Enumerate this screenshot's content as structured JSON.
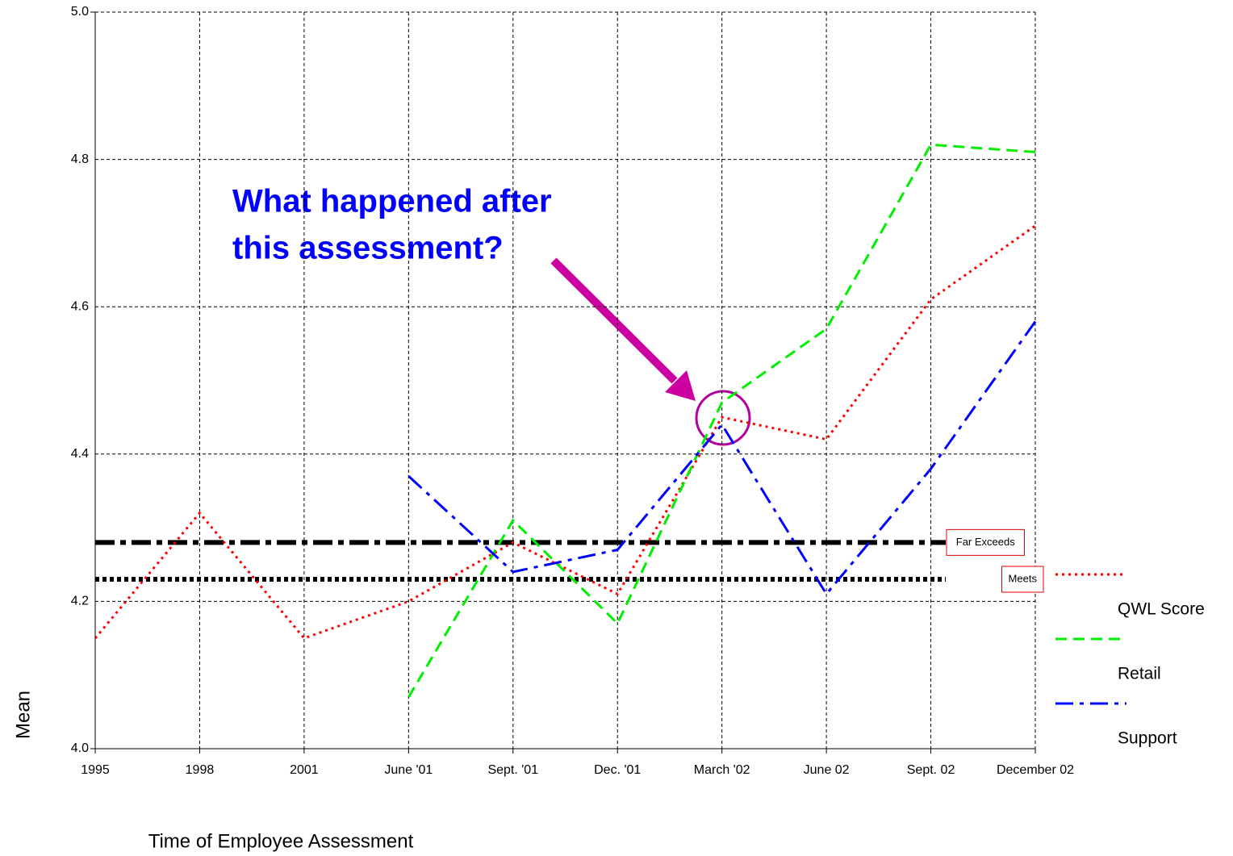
{
  "chart_data": {
    "type": "line",
    "x_label": "Time of Employee Assessment",
    "y_label": "Mean",
    "categories": [
      "1995",
      "1998",
      "2001",
      "June '01",
      "Sept. '01",
      "Dec. '01",
      "March '02",
      "June 02",
      "Sept. 02",
      "December 02"
    ],
    "series": [
      {
        "name": "QWL Score",
        "color": "#ff0000",
        "style": "dotted",
        "values": [
          4.15,
          4.32,
          4.15,
          4.2,
          4.28,
          4.21,
          4.45,
          4.42,
          4.61,
          4.71
        ]
      },
      {
        "name": "Retail",
        "color": "#00ee00",
        "style": "dashed",
        "values": [
          null,
          null,
          null,
          4.07,
          4.31,
          4.17,
          4.47,
          4.57,
          4.82,
          4.81
        ]
      },
      {
        "name": "Support",
        "color": "#0000ff",
        "style": "dashdot",
        "values": [
          null,
          null,
          null,
          4.37,
          4.24,
          4.27,
          4.44,
          4.21,
          4.38,
          4.58
        ]
      }
    ],
    "reference_lines": [
      {
        "label": "Far Exceeds",
        "value": 4.28,
        "style": "dashdot",
        "color": "#000000"
      },
      {
        "label": "Meets",
        "value": 4.23,
        "style": "dotted",
        "color": "#000000"
      }
    ],
    "annotation": [
      "What happened after",
      "this assessment?"
    ],
    "ylim": [
      4,
      5
    ],
    "yticks": [
      {
        "value": 4,
        "label": "4.0"
      },
      4.2,
      4.4,
      4.6,
      4.8,
      {
        "value": 5,
        "label": "5.0"
      }
    ],
    "grid": true
  }
}
